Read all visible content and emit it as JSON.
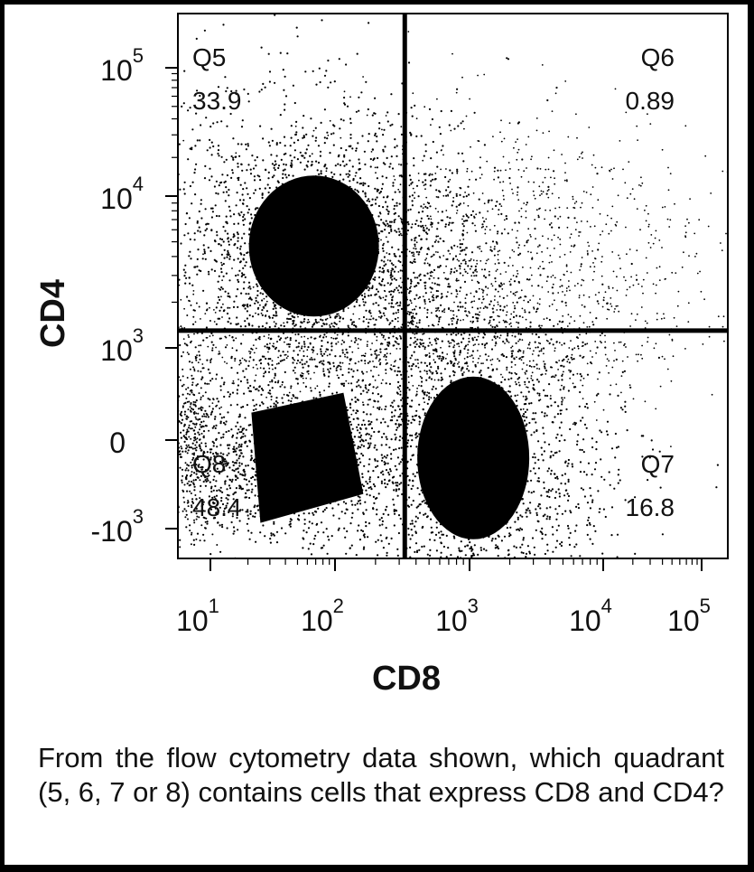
{
  "chart_data": {
    "type": "scatter",
    "xlabel": "CD8",
    "ylabel": "CD4",
    "x_scale": "biexponential",
    "y_scale": "biexponential",
    "x_ticks": [
      {
        "base": "10",
        "exp": "1"
      },
      {
        "base": "10",
        "exp": "2"
      },
      {
        "base": "10",
        "exp": "3"
      },
      {
        "base": "10",
        "exp": "4"
      },
      {
        "base": "10",
        "exp": "5"
      }
    ],
    "y_ticks": [
      {
        "base": "10",
        "exp": "5"
      },
      {
        "base": "10",
        "exp": "4"
      },
      {
        "base": "10",
        "exp": "3"
      },
      {
        "base": "0",
        "exp": ""
      },
      {
        "base": "-10",
        "exp": "3"
      }
    ],
    "gate_x": 330,
    "gate_y": 1300,
    "quadrants": [
      {
        "name": "Q5",
        "value": "33.9",
        "position": "top-left"
      },
      {
        "name": "Q6",
        "value": "0.89",
        "position": "top-right"
      },
      {
        "name": "Q7",
        "value": "16.8",
        "position": "bottom-right"
      },
      {
        "name": "Q8",
        "value": "48.4",
        "position": "bottom-left"
      }
    ],
    "populations": [
      {
        "quadrant": "Q5",
        "cd8_center": 80,
        "cd4_center": 6000
      },
      {
        "quadrant": "Q8",
        "cd8_center": 60,
        "cd4_center": -200
      },
      {
        "quadrant": "Q7",
        "cd8_center": 1100,
        "cd4_center": -100
      }
    ]
  },
  "question": "From the flow cytometry data shown, which quadrant (5, 6, 7 or 8) contains cells that express CD8 and CD4?"
}
